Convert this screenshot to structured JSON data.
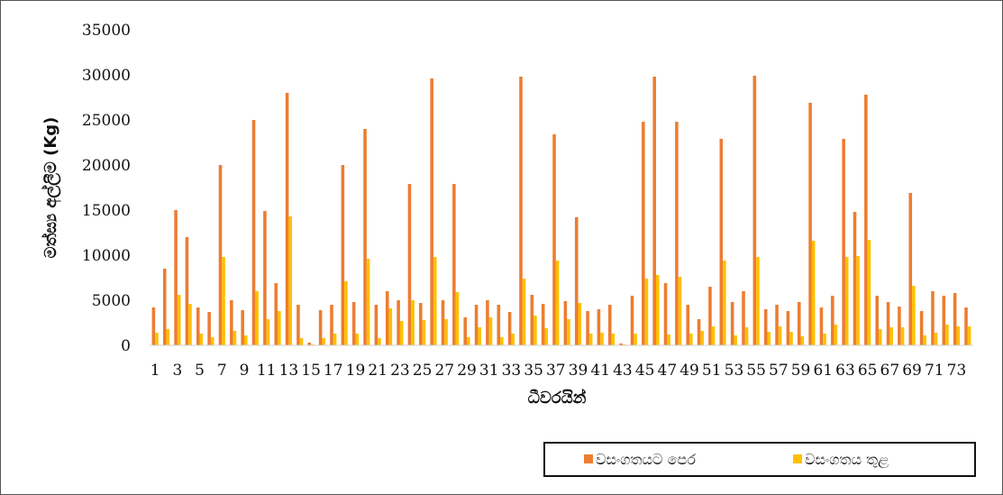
{
  "chart_data": {
    "type": "bar",
    "ylabel": "මත්ස්‍ය අල්ලීම (Kg)",
    "xlabel": "ධීවරයින්",
    "ylim": [
      0,
      35000
    ],
    "yticks": [
      0,
      5000,
      10000,
      15000,
      20000,
      25000,
      30000,
      35000
    ],
    "x_tick_labels": [
      1,
      3,
      5,
      7,
      9,
      11,
      13,
      15,
      17,
      19,
      21,
      23,
      25,
      27,
      29,
      31,
      33,
      35,
      37,
      39,
      41,
      43,
      45,
      47,
      49,
      51,
      53,
      55,
      57,
      59,
      61,
      63,
      65,
      67,
      69,
      71,
      73
    ],
    "grid": false,
    "legend_position": "bottom-right",
    "categories": [
      1,
      2,
      3,
      4,
      5,
      6,
      7,
      8,
      9,
      10,
      11,
      12,
      13,
      14,
      15,
      16,
      17,
      18,
      19,
      20,
      21,
      22,
      23,
      24,
      25,
      26,
      27,
      28,
      29,
      30,
      31,
      32,
      33,
      34,
      35,
      36,
      37,
      38,
      39,
      40,
      41,
      42,
      43,
      44,
      45,
      46,
      47,
      48,
      49,
      50,
      51,
      52,
      53,
      54,
      55,
      56,
      57,
      58,
      59,
      60,
      61,
      62,
      63,
      64,
      65,
      66,
      67,
      68,
      69,
      70,
      71,
      72,
      73,
      74
    ],
    "series": [
      {
        "name": "වසංගතයට පෙර",
        "color": "#ED7D31",
        "values": [
          4200,
          8500,
          15000,
          12000,
          4200,
          3700,
          20000,
          5000,
          3900,
          25000,
          14900,
          6900,
          28000,
          4500,
          300,
          3900,
          4500,
          20000,
          4800,
          24000,
          4500,
          6000,
          5000,
          17900,
          4700,
          29600,
          5000,
          17900,
          3100,
          4500,
          5000,
          4500,
          3700,
          29800,
          5600,
          4600,
          23400,
          4900,
          14200,
          3800,
          4000,
          4500,
          200,
          5500,
          24800,
          29800,
          6900,
          24800,
          4500,
          2900,
          6500,
          22900,
          4800,
          6000,
          29900,
          4000,
          4500,
          3800,
          4800,
          26900,
          4200,
          5500,
          22900,
          14800,
          27800,
          5500,
          4800,
          4300,
          16900,
          3800,
          6000,
          5500,
          5800,
          4200
        ]
      },
      {
        "name": "වසංගතය තුළ",
        "color": "#FFC000",
        "values": [
          1400,
          1800,
          5600,
          4600,
          1300,
          900,
          9800,
          1600,
          1100,
          6000,
          2900,
          3800,
          14300,
          800,
          100,
          800,
          1300,
          7100,
          1300,
          9600,
          800,
          4100,
          2700,
          5000,
          2800,
          9800,
          2900,
          5900,
          900,
          2000,
          3100,
          900,
          1300,
          7400,
          3300,
          1900,
          9400,
          2900,
          4700,
          1300,
          1400,
          1300,
          100,
          1300,
          7400,
          7800,
          1200,
          7600,
          1300,
          1600,
          2100,
          9400,
          1100,
          2000,
          9800,
          1500,
          2100,
          1500,
          1000,
          11600,
          1300,
          2300,
          9800,
          9900,
          11700,
          1800,
          2000,
          2000,
          6600,
          1100,
          1400,
          2300,
          2100,
          2100
        ]
      }
    ]
  }
}
